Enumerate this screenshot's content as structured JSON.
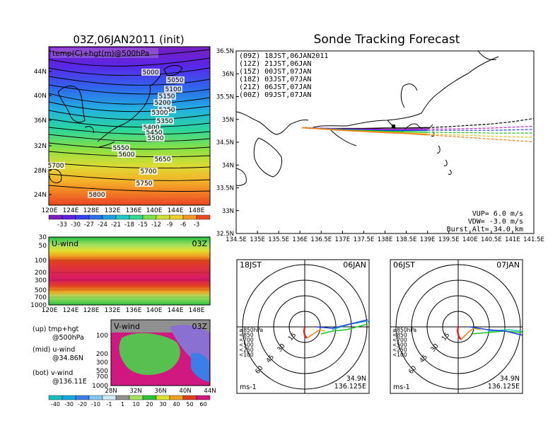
{
  "left_panel": {
    "title": "03Z,06JAN2011 (init)",
    "map_label": "temp(C)+hgt(m)@500hPa",
    "lat_ticks": [
      "44N",
      "40N",
      "36N",
      "32N",
      "28N",
      "24N"
    ],
    "lon_ticks": [
      "120E",
      "124E",
      "128E",
      "132E",
      "136E",
      "140E",
      "144E",
      "148E"
    ],
    "contour_labels": [
      "5000",
      "5050",
      "5100",
      "5150",
      "5200",
      "5250",
      "5300",
      "5350",
      "5400",
      "5450",
      "5500",
      "5550",
      "5600",
      "5650",
      "5700",
      "5750",
      "5800",
      "5700"
    ],
    "temp_colorbar": [
      "-33",
      "-30",
      "-27",
      "-24",
      "-21",
      "-18",
      "-15",
      "-12",
      "-9",
      "-6",
      "-3"
    ],
    "temp_colors": [
      "#7a1fbf",
      "#5d22e0",
      "#3a3ef0",
      "#2c6fe8",
      "#1ea0e0",
      "#22c9c9",
      "#30d890",
      "#7ee04a",
      "#cde03a",
      "#f2d02a",
      "#f49a22",
      "#ee4a22"
    ]
  },
  "u_panel": {
    "label": "U-wind",
    "time": "03Z",
    "p_ticks": [
      "30",
      "50",
      "100",
      "200",
      "300",
      "500",
      "700",
      "1000"
    ],
    "lon_ticks": [
      "120E",
      "124E",
      "128E",
      "132E",
      "136E",
      "140E",
      "144E",
      "148E"
    ]
  },
  "v_panel": {
    "label": "V-wind",
    "time": "03Z",
    "p_ticks": [
      "100",
      "200",
      "300",
      "500",
      "700",
      "1000"
    ],
    "lat_ticks": [
      "28N",
      "32N",
      "36N",
      "40N",
      "44N"
    ],
    "legend_lines": [
      {
        "a": "(up) tmp+hgt",
        "b": "@500hPa"
      },
      {
        "a": "(mid) u-wind",
        "b": "@34.86N"
      },
      {
        "a": "(bot) v-wind",
        "b": "@136.11E"
      }
    ],
    "wind_colorbar": [
      "-40",
      "-30",
      "-20",
      "-10",
      "-1",
      "1",
      "10",
      "20",
      "30",
      "40",
      "50",
      "60"
    ],
    "wind_colors": [
      "#17c0c0",
      "#17a8e0",
      "#3b7ee8",
      "#86c8f0",
      "#d0eef8",
      "#909090",
      "#a8e060",
      "#30c040",
      "#e0e030",
      "#f0a020",
      "#e04020",
      "#d01880"
    ]
  },
  "tracking": {
    "title": "Sonde Tracking Forecast",
    "lat_ticks": [
      "36.5N",
      "36N",
      "35.5N",
      "35N",
      "34.5N",
      "34N",
      "33.5N",
      "33N",
      "32.5N"
    ],
    "lon_ticks": [
      "134.5E",
      "135E",
      "135.5E",
      "136E",
      "136.5E",
      "137E",
      "137.5E",
      "138E",
      "138.5E",
      "139E",
      "139.5E",
      "140E",
      "140.5E",
      "141E",
      "141.5E"
    ],
    "legend": [
      {
        "text": "(09Z)  18JST,06JAN2011",
        "color": "#000000"
      },
      {
        "text": "(12Z)  21JST,06JAN",
        "color": "#c020d0"
      },
      {
        "text": "(15Z)  00JST,07JAN",
        "color": "#2040e0"
      },
      {
        "text": "(18Z)  03JST,07JAN",
        "color": "#20c020"
      },
      {
        "text": "(21Z)  06JST,07JAN",
        "color": "#e0c020"
      },
      {
        "text": "(00Z)  09JST,07JAN",
        "color": "#f08020"
      }
    ],
    "vup": "VUP=  6.0  m/s",
    "vdw": "VDW=  -3.0  m/s",
    "burst": "Burst Alt=  34.0  km"
  },
  "hodographs": [
    {
      "left": "18JST",
      "right": "06JAN",
      "unit": "ms-1",
      "lat": "34.9N",
      "lon": "136.125E",
      "ring_labels": [
        "15",
        "30",
        "45",
        "60"
      ],
      "levels": [
        {
          "t": "≥850hPa",
          "c": "#e02020"
        },
        {
          "t": "<850",
          "c": "#f08020"
        },
        {
          "t": "<700",
          "c": "#e0c020"
        },
        {
          "t": "<500",
          "c": "#20c020"
        },
        {
          "t": "<250",
          "c": "#20c0c0"
        },
        {
          "t": "<100",
          "c": "#2040e0"
        }
      ]
    },
    {
      "left": "06JST",
      "right": "07JAN",
      "unit": "ms-1",
      "lat": "34.9N",
      "lon": "136.125E",
      "ring_labels": [
        "15",
        "30",
        "45",
        "60"
      ],
      "levels": [
        {
          "t": "≥850hPa",
          "c": "#e02020"
        },
        {
          "t": "<850",
          "c": "#f08020"
        },
        {
          "t": "<700",
          "c": "#e0c020"
        },
        {
          "t": "<500",
          "c": "#20c020"
        },
        {
          "t": "<250",
          "c": "#20c0c0"
        },
        {
          "t": "<100",
          "c": "#2040e0"
        }
      ]
    }
  ],
  "chart_data": [
    {
      "type": "heatmap",
      "title": "03Z,06JAN2011 (init)",
      "subtitle": "temp(C)+hgt(m)@500hPa",
      "x": [
        "120E",
        "124E",
        "128E",
        "132E",
        "136E",
        "140E",
        "144E",
        "148E"
      ],
      "y": [
        "24N",
        "28N",
        "32N",
        "36N",
        "40N",
        "44N"
      ],
      "contours_hgt_m": [
        5000,
        5050,
        5100,
        5150,
        5200,
        5250,
        5300,
        5350,
        5400,
        5450,
        5500,
        5550,
        5600,
        5650,
        5700,
        5750,
        5800
      ]
    },
    {
      "type": "heatmap",
      "title": "U-wind",
      "x": [
        "120E",
        "124E",
        "128E",
        "132E",
        "136E",
        "140E",
        "144E",
        "148E"
      ],
      "y_pressure_hPa": [
        30,
        50,
        100,
        200,
        300,
        500,
        700,
        1000
      ]
    },
    {
      "type": "heatmap",
      "title": "V-wind",
      "x": [
        "28N",
        "32N",
        "36N",
        "40N",
        "44N"
      ],
      "y_pressure_hPa": [
        100,
        200,
        300,
        500,
        700,
        1000
      ]
    },
    {
      "type": "line",
      "title": "Sonde Tracking Forecast",
      "xlim": [
        134.5,
        141.5
      ],
      "ylim": [
        32.5,
        36.5
      ],
      "series": [
        {
          "name": "(09Z)  18JST,06JAN2011",
          "x": [
            136.05,
            136.5,
            137.0,
            137.5,
            138.0,
            138.5,
            139.0,
            139.5,
            140.0,
            140.5,
            141.0,
            141.5
          ],
          "y": [
            34.82,
            34.8,
            34.8,
            34.8,
            34.81,
            34.81,
            34.82,
            34.84,
            34.87,
            34.9,
            34.95,
            35.02
          ]
        },
        {
          "name": "(12Z)  21JST,06JAN",
          "x": [
            136.05,
            137.0,
            138.0,
            138.5,
            139.0,
            139.5,
            140.0,
            140.5,
            141.0,
            141.5
          ],
          "y": [
            34.82,
            34.79,
            34.78,
            34.78,
            34.79,
            34.79,
            34.8,
            34.81,
            34.83,
            34.85
          ]
        },
        {
          "name": "(15Z)  00JST,07JAN",
          "x": [
            136.05,
            137.0,
            138.0,
            138.5,
            139.0,
            139.5,
            140.0,
            140.5,
            141.0,
            141.5
          ],
          "y": [
            34.82,
            34.78,
            34.76,
            34.76,
            34.76,
            34.76,
            34.76,
            34.76,
            34.77,
            34.78
          ]
        },
        {
          "name": "(18Z)  03JST,07JAN",
          "x": [
            136.05,
            137.0,
            138.0,
            138.5,
            139.0,
            139.5,
            140.0,
            140.5,
            141.0,
            141.5
          ],
          "y": [
            34.82,
            34.77,
            34.74,
            34.73,
            34.72,
            34.71,
            34.71,
            34.7,
            34.7,
            34.7
          ]
        },
        {
          "name": "(21Z)  06JST,07JAN",
          "x": [
            136.05,
            137.0,
            138.0,
            138.5,
            139.0,
            139.5,
            140.0,
            140.5,
            141.0,
            141.5
          ],
          "y": [
            34.82,
            34.76,
            34.72,
            34.7,
            34.68,
            34.66,
            34.65,
            34.63,
            34.62,
            34.61
          ]
        },
        {
          "name": "(00Z)  09JST,07JAN",
          "x": [
            136.05,
            137.0,
            138.0,
            138.5,
            139.0,
            139.5,
            140.0,
            140.5,
            141.0,
            141.5
          ],
          "y": [
            34.82,
            34.76,
            34.71,
            34.69,
            34.66,
            34.63,
            34.6,
            34.57,
            34.54,
            34.51
          ]
        }
      ]
    }
  ]
}
